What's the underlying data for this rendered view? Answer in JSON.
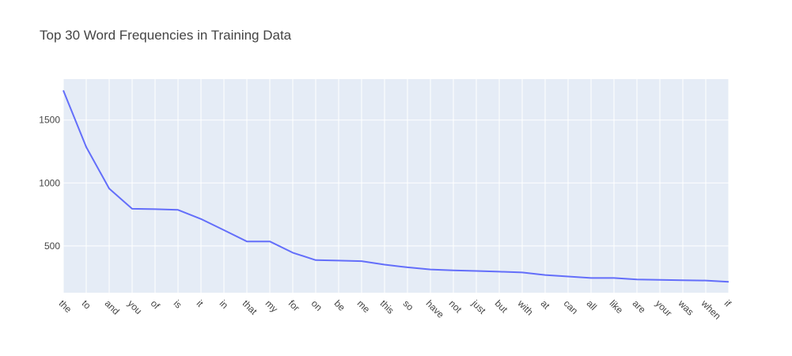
{
  "chart_data": {
    "type": "line",
    "title": "Top 30 Word Frequencies in Training Data",
    "xlabel": "",
    "ylabel": "",
    "categories": [
      "the",
      "to",
      "and",
      "you",
      "of",
      "is",
      "it",
      "in",
      "that",
      "my",
      "for",
      "on",
      "be",
      "me",
      "this",
      "so",
      "have",
      "not",
      "just",
      "but",
      "with",
      "at",
      "can",
      "all",
      "like",
      "are",
      "your",
      "was",
      "when",
      "if"
    ],
    "values": [
      1735,
      1285,
      955,
      795,
      792,
      786,
      714,
      625,
      535,
      535,
      446,
      387,
      383,
      379,
      351,
      330,
      313,
      305,
      301,
      295,
      289,
      269,
      257,
      245,
      245,
      233,
      230,
      227,
      225,
      215
    ],
    "y_ticks": [
      500,
      1000,
      1500
    ],
    "ylim": [
      128,
      1825
    ],
    "grid": true,
    "line_color": "#636efa",
    "plot_bg": "#e5ecf6",
    "grid_color": "#ffffff"
  }
}
